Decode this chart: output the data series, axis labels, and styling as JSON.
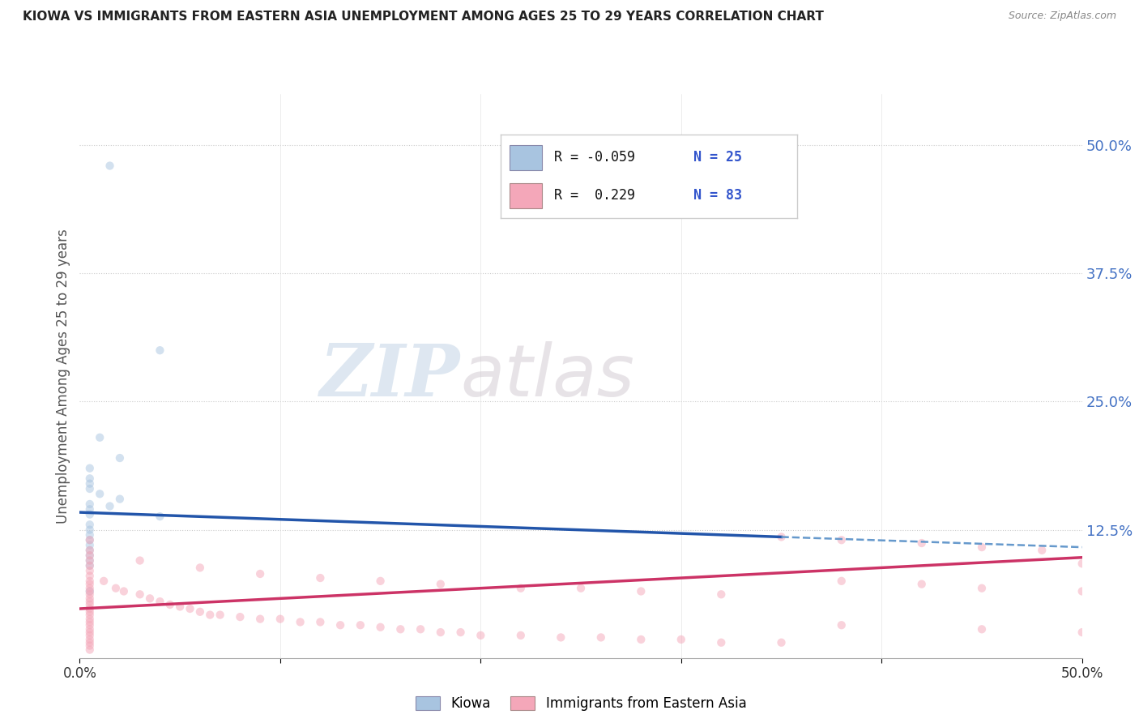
{
  "title": "KIOWA VS IMMIGRANTS FROM EASTERN ASIA UNEMPLOYMENT AMONG AGES 25 TO 29 YEARS CORRELATION CHART",
  "source": "Source: ZipAtlas.com",
  "ylabel": "Unemployment Among Ages 25 to 29 years",
  "xlim": [
    0.0,
    0.5
  ],
  "ylim": [
    0.0,
    0.55
  ],
  "yticks": [
    0.0,
    0.125,
    0.25,
    0.375,
    0.5
  ],
  "ytick_labels": [
    "",
    "12.5%",
    "25.0%",
    "37.5%",
    "50.0%"
  ],
  "xticks": [
    0.0,
    0.5
  ],
  "xtick_labels": [
    "0.0%",
    "50.0%"
  ],
  "legend_entries": [
    {
      "label": "Kiowa",
      "color": "#a8c4e0",
      "R": "-0.059",
      "N": "25"
    },
    {
      "label": "Immigrants from Eastern Asia",
      "color": "#f4a7b9",
      "R": "0.229",
      "N": "83"
    }
  ],
  "kiowa_scatter": [
    [
      0.015,
      0.48
    ],
    [
      0.04,
      0.3
    ],
    [
      0.01,
      0.215
    ],
    [
      0.02,
      0.195
    ],
    [
      0.005,
      0.185
    ],
    [
      0.005,
      0.175
    ],
    [
      0.005,
      0.17
    ],
    [
      0.005,
      0.165
    ],
    [
      0.01,
      0.16
    ],
    [
      0.02,
      0.155
    ],
    [
      0.005,
      0.15
    ],
    [
      0.015,
      0.148
    ],
    [
      0.005,
      0.145
    ],
    [
      0.005,
      0.14
    ],
    [
      0.04,
      0.138
    ],
    [
      0.005,
      0.13
    ],
    [
      0.005,
      0.125
    ],
    [
      0.005,
      0.12
    ],
    [
      0.005,
      0.115
    ],
    [
      0.005,
      0.11
    ],
    [
      0.005,
      0.105
    ],
    [
      0.005,
      0.1
    ],
    [
      0.005,
      0.095
    ],
    [
      0.005,
      0.09
    ],
    [
      0.005,
      0.065
    ]
  ],
  "immigrants_scatter": [
    [
      0.005,
      0.115
    ],
    [
      0.005,
      0.105
    ],
    [
      0.005,
      0.1
    ],
    [
      0.005,
      0.095
    ],
    [
      0.005,
      0.09
    ],
    [
      0.005,
      0.085
    ],
    [
      0.005,
      0.08
    ],
    [
      0.005,
      0.075
    ],
    [
      0.005,
      0.072
    ],
    [
      0.005,
      0.068
    ],
    [
      0.005,
      0.065
    ],
    [
      0.005,
      0.062
    ],
    [
      0.005,
      0.058
    ],
    [
      0.005,
      0.055
    ],
    [
      0.005,
      0.052
    ],
    [
      0.005,
      0.048
    ],
    [
      0.005,
      0.045
    ],
    [
      0.005,
      0.042
    ],
    [
      0.005,
      0.038
    ],
    [
      0.005,
      0.035
    ],
    [
      0.005,
      0.032
    ],
    [
      0.005,
      0.028
    ],
    [
      0.005,
      0.025
    ],
    [
      0.005,
      0.022
    ],
    [
      0.005,
      0.018
    ],
    [
      0.005,
      0.015
    ],
    [
      0.005,
      0.012
    ],
    [
      0.005,
      0.008
    ],
    [
      0.012,
      0.075
    ],
    [
      0.018,
      0.068
    ],
    [
      0.022,
      0.065
    ],
    [
      0.03,
      0.062
    ],
    [
      0.035,
      0.058
    ],
    [
      0.04,
      0.055
    ],
    [
      0.045,
      0.052
    ],
    [
      0.05,
      0.05
    ],
    [
      0.055,
      0.048
    ],
    [
      0.06,
      0.045
    ],
    [
      0.065,
      0.042
    ],
    [
      0.07,
      0.042
    ],
    [
      0.08,
      0.04
    ],
    [
      0.09,
      0.038
    ],
    [
      0.1,
      0.038
    ],
    [
      0.11,
      0.035
    ],
    [
      0.12,
      0.035
    ],
    [
      0.13,
      0.032
    ],
    [
      0.14,
      0.032
    ],
    [
      0.15,
      0.03
    ],
    [
      0.16,
      0.028
    ],
    [
      0.17,
      0.028
    ],
    [
      0.18,
      0.025
    ],
    [
      0.19,
      0.025
    ],
    [
      0.2,
      0.022
    ],
    [
      0.22,
      0.022
    ],
    [
      0.24,
      0.02
    ],
    [
      0.26,
      0.02
    ],
    [
      0.28,
      0.018
    ],
    [
      0.3,
      0.018
    ],
    [
      0.32,
      0.015
    ],
    [
      0.35,
      0.015
    ],
    [
      0.03,
      0.095
    ],
    [
      0.06,
      0.088
    ],
    [
      0.09,
      0.082
    ],
    [
      0.12,
      0.078
    ],
    [
      0.15,
      0.075
    ],
    [
      0.18,
      0.072
    ],
    [
      0.22,
      0.068
    ],
    [
      0.25,
      0.068
    ],
    [
      0.28,
      0.065
    ],
    [
      0.32,
      0.062
    ],
    [
      0.35,
      0.118
    ],
    [
      0.38,
      0.115
    ],
    [
      0.42,
      0.112
    ],
    [
      0.45,
      0.108
    ],
    [
      0.48,
      0.105
    ],
    [
      0.5,
      0.092
    ],
    [
      0.38,
      0.075
    ],
    [
      0.42,
      0.072
    ],
    [
      0.45,
      0.068
    ],
    [
      0.5,
      0.065
    ],
    [
      0.5,
      0.025
    ],
    [
      0.45,
      0.028
    ],
    [
      0.38,
      0.032
    ]
  ],
  "kiowa_line_solid": {
    "x": [
      0.0,
      0.35
    ],
    "y": [
      0.142,
      0.118
    ],
    "color": "#2255aa",
    "style": "solid",
    "lw": 2.5
  },
  "kiowa_line_dashed": {
    "x": [
      0.35,
      0.5
    ],
    "y": [
      0.118,
      0.108
    ],
    "color": "#6699cc",
    "style": "dashed",
    "lw": 1.8
  },
  "immigrants_line": {
    "x": [
      0.0,
      0.5
    ],
    "y": [
      0.048,
      0.098
    ],
    "color": "#cc3366",
    "style": "solid",
    "lw": 2.5
  },
  "background_color": "#ffffff",
  "grid_color": "#cccccc",
  "watermark_zip": "ZIP",
  "watermark_atlas": "atlas",
  "scatter_size": 55,
  "scatter_alpha": 0.5
}
